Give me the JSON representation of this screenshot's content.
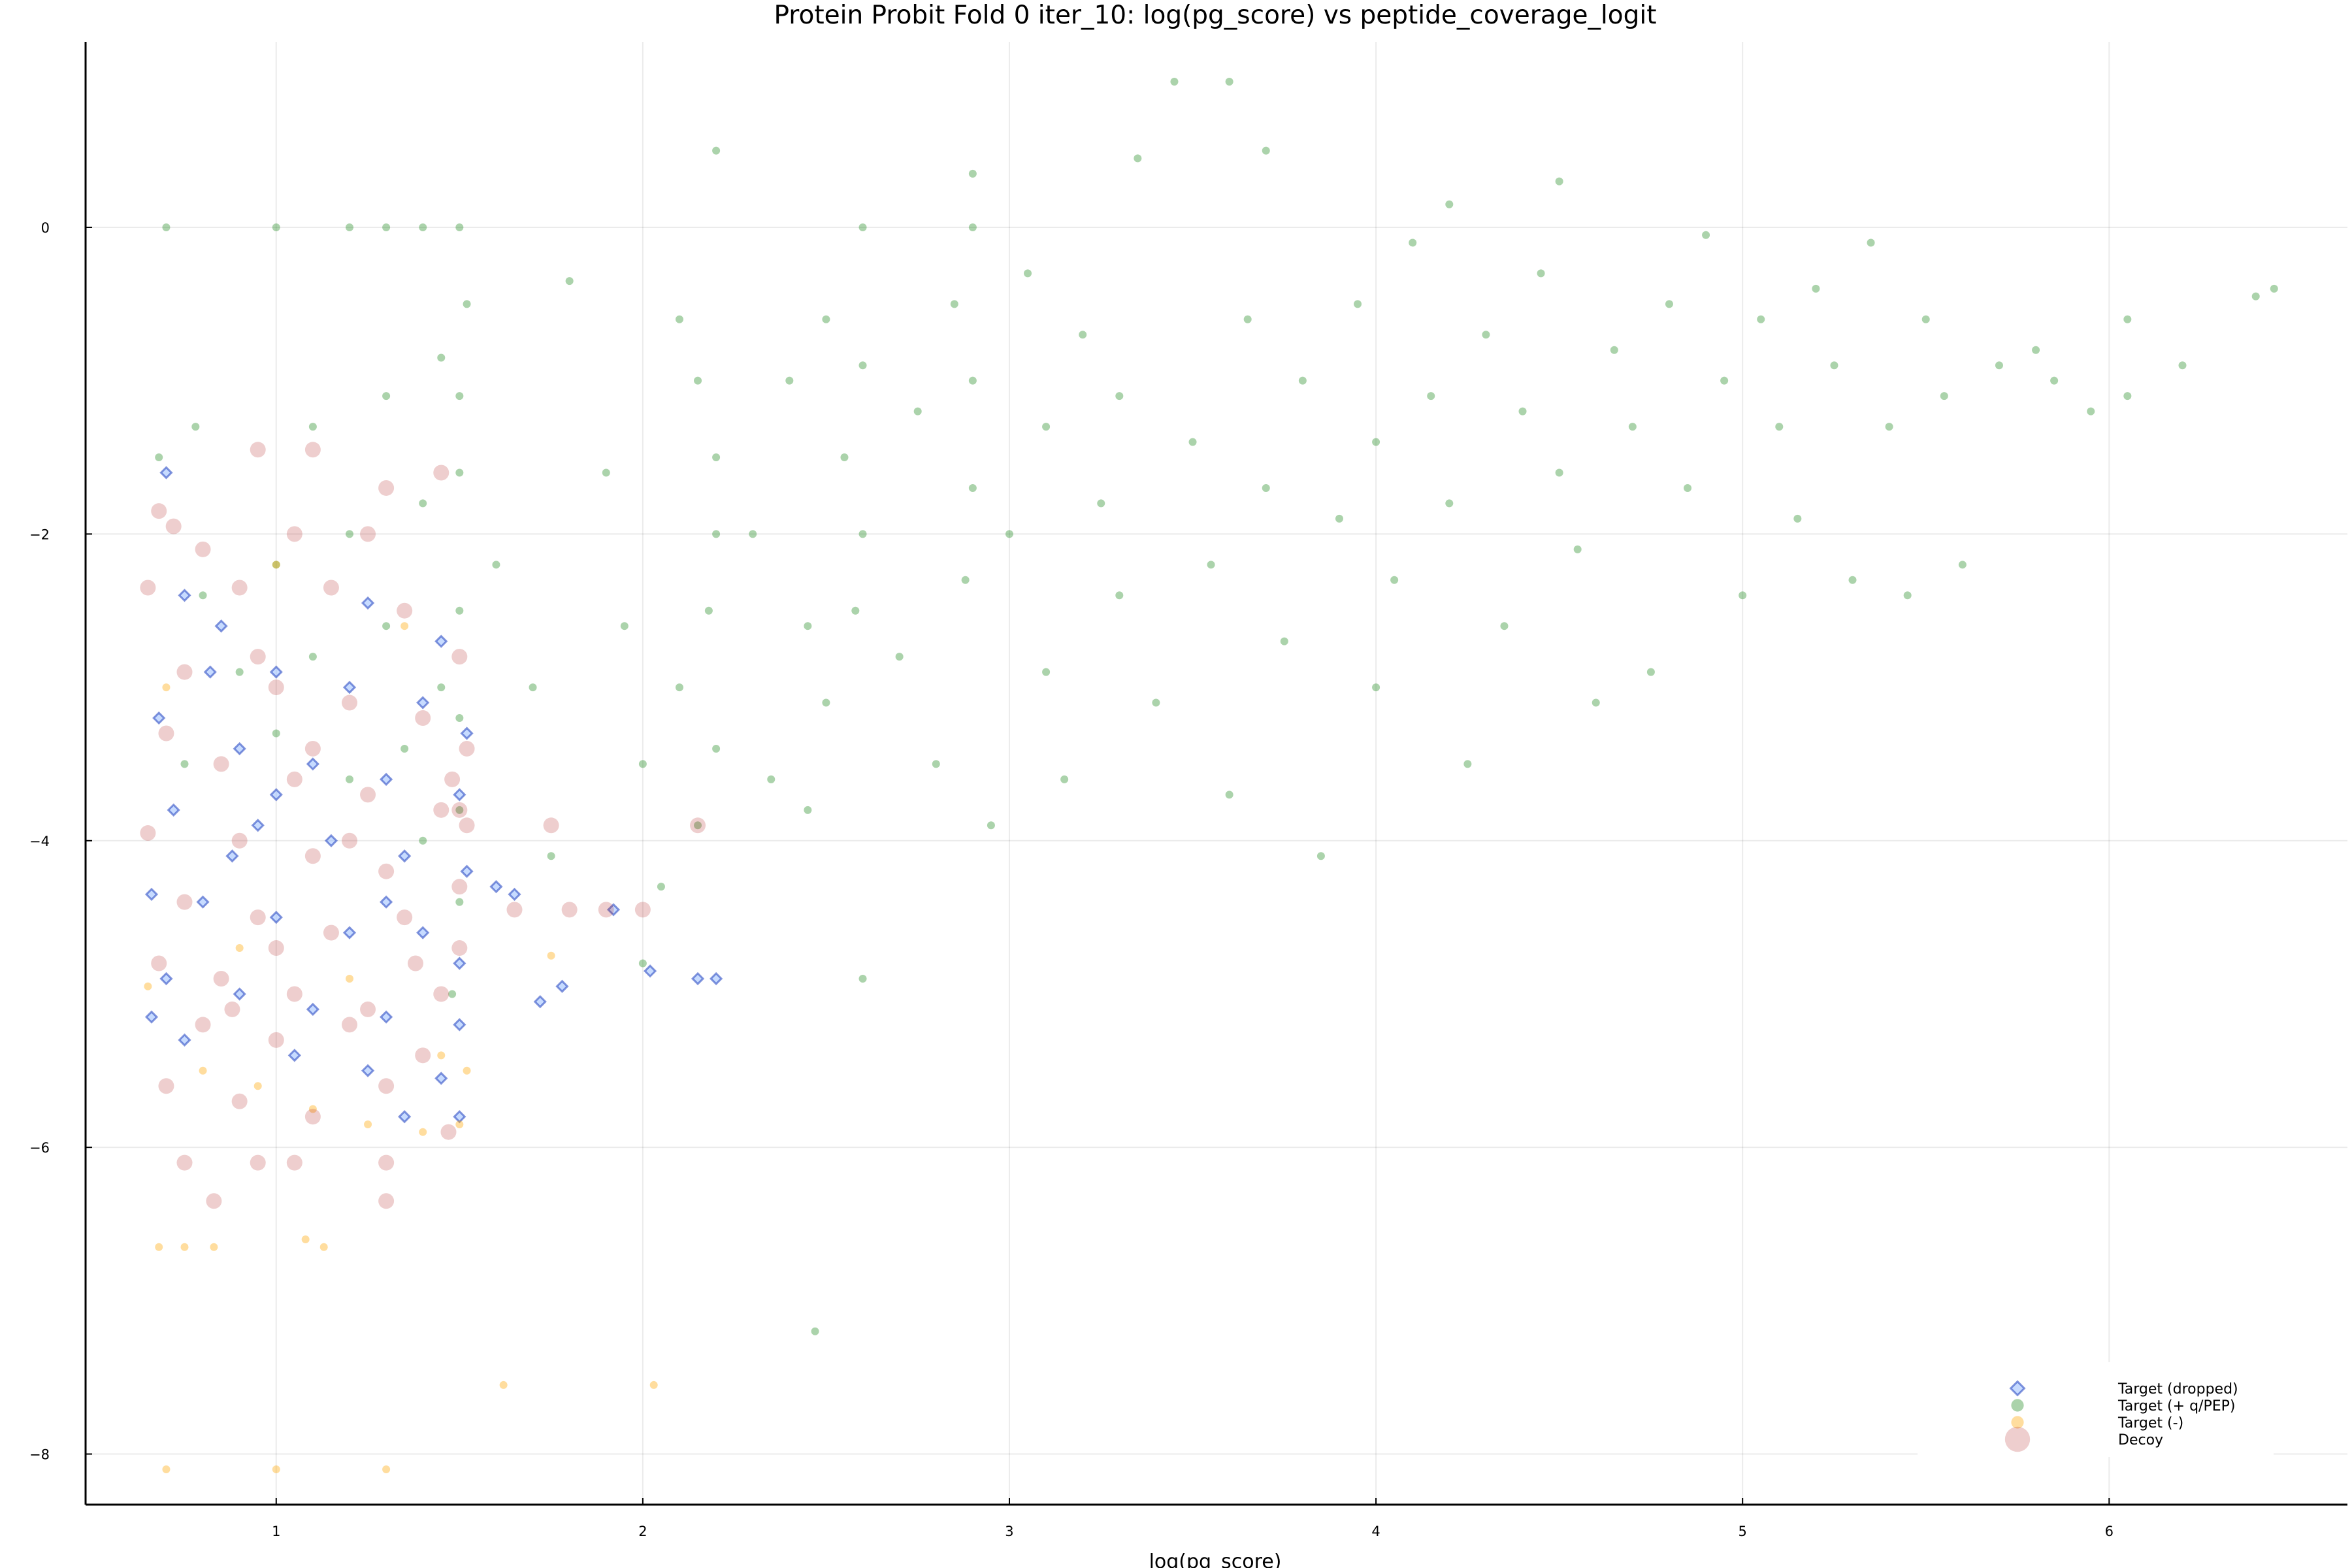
{
  "chart_data": {
    "type": "scatter",
    "title": "Protein Probit Fold 0 iter_10: log(pg_score) vs peptide_coverage_logit",
    "xlabel": "log(pg_score)",
    "ylabel": "",
    "xlim": [
      0.48,
      6.65
    ],
    "ylim": [
      -8.33,
      1.21
    ],
    "xticks": [
      1,
      2,
      3,
      4,
      5,
      6
    ],
    "yticks": [
      0,
      -2,
      -4,
      -6,
      -8
    ],
    "xtick_labels": [
      "1",
      "2",
      "3",
      "4",
      "5",
      "6"
    ],
    "ytick_labels": [
      "0",
      "−2",
      "−4",
      "−6",
      "−8"
    ],
    "grid": true,
    "legend_position": "bottom-right",
    "series": [
      {
        "name": "Target (dropped)",
        "marker": "diamond",
        "color": "#1f3fbf",
        "points": [
          [
            0.7,
            -1.6
          ],
          [
            0.75,
            -2.4
          ],
          [
            0.85,
            -2.6
          ],
          [
            1.0,
            -2.9
          ],
          [
            1.2,
            -3.0
          ],
          [
            1.4,
            -3.1
          ],
          [
            0.68,
            -3.2
          ],
          [
            0.9,
            -3.4
          ],
          [
            1.1,
            -3.5
          ],
          [
            1.3,
            -3.6
          ],
          [
            1.5,
            -3.7
          ],
          [
            0.72,
            -3.8
          ],
          [
            0.95,
            -3.9
          ],
          [
            1.15,
            -4.0
          ],
          [
            1.35,
            -4.1
          ],
          [
            1.52,
            -4.2
          ],
          [
            0.66,
            -4.35
          ],
          [
            0.8,
            -4.4
          ],
          [
            1.0,
            -4.5
          ],
          [
            1.2,
            -4.6
          ],
          [
            1.4,
            -4.6
          ],
          [
            1.5,
            -4.8
          ],
          [
            0.7,
            -4.9
          ],
          [
            0.9,
            -5.0
          ],
          [
            1.1,
            -5.1
          ],
          [
            1.3,
            -5.15
          ],
          [
            1.5,
            -5.2
          ],
          [
            0.75,
            -5.3
          ],
          [
            1.05,
            -5.4
          ],
          [
            1.25,
            -5.5
          ],
          [
            1.45,
            -5.55
          ],
          [
            1.35,
            -5.8
          ],
          [
            1.5,
            -5.8
          ],
          [
            0.66,
            -5.15
          ],
          [
            1.6,
            -4.3
          ],
          [
            1.65,
            -4.35
          ],
          [
            1.72,
            -5.05
          ],
          [
            1.78,
            -4.95
          ],
          [
            1.92,
            -4.45
          ],
          [
            2.02,
            -4.85
          ],
          [
            2.15,
            -4.9
          ],
          [
            2.2,
            -4.9
          ],
          [
            0.82,
            -2.9
          ],
          [
            1.25,
            -2.45
          ],
          [
            1.45,
            -2.7
          ],
          [
            1.52,
            -3.3
          ],
          [
            1.0,
            -3.7
          ],
          [
            1.3,
            -4.4
          ],
          [
            0.88,
            -4.1
          ]
        ]
      },
      {
        "name": "Target (+ q/PEP)",
        "marker": "circle",
        "color": "#228b22",
        "points": [
          [
            0.7,
            0
          ],
          [
            1.0,
            0
          ],
          [
            1.2,
            0
          ],
          [
            1.3,
            0
          ],
          [
            1.4,
            0
          ],
          [
            1.5,
            0
          ],
          [
            1.52,
            -0.5
          ],
          [
            1.45,
            -0.85
          ],
          [
            1.5,
            -1.1
          ],
          [
            1.3,
            -1.1
          ],
          [
            1.1,
            -1.3
          ],
          [
            0.78,
            -1.3
          ],
          [
            0.68,
            -1.5
          ],
          [
            1.5,
            -1.6
          ],
          [
            1.4,
            -1.8
          ],
          [
            1.2,
            -2.0
          ],
          [
            1.0,
            -2.2
          ],
          [
            0.8,
            -2.4
          ],
          [
            1.5,
            -2.5
          ],
          [
            1.3,
            -2.6
          ],
          [
            1.1,
            -2.8
          ],
          [
            0.9,
            -2.9
          ],
          [
            1.45,
            -3.0
          ],
          [
            1.5,
            -3.2
          ],
          [
            1.35,
            -3.4
          ],
          [
            1.2,
            -3.6
          ],
          [
            1.5,
            -3.8
          ],
          [
            1.4,
            -4.0
          ],
          [
            1.0,
            -3.3
          ],
          [
            0.75,
            -3.5
          ],
          [
            1.5,
            -4.4
          ],
          [
            1.48,
            -5.0
          ],
          [
            1.6,
            -2.2
          ],
          [
            1.7,
            -3.0
          ],
          [
            1.8,
            -0.35
          ],
          [
            1.75,
            -4.1
          ],
          [
            1.9,
            -1.6
          ],
          [
            1.95,
            -2.6
          ],
          [
            2.0,
            -3.5
          ],
          [
            2.05,
            -4.3
          ],
          [
            2.1,
            -0.6
          ],
          [
            2.15,
            -1.0
          ],
          [
            2.2,
            -1.5
          ],
          [
            2.2,
            -2.0
          ],
          [
            2.18,
            -2.5
          ],
          [
            2.1,
            -3.0
          ],
          [
            2.2,
            -3.4
          ],
          [
            2.15,
            -3.9
          ],
          [
            2.2,
            0.5
          ],
          [
            2.0,
            -4.8
          ],
          [
            2.3,
            -2.0
          ],
          [
            2.35,
            -3.6
          ],
          [
            2.4,
            -1.0
          ],
          [
            2.45,
            -2.6
          ],
          [
            2.5,
            -0.6
          ],
          [
            2.55,
            -1.5
          ],
          [
            2.6,
            -2.0
          ],
          [
            2.6,
            -0.9
          ],
          [
            2.58,
            -2.5
          ],
          [
            2.5,
            -3.1
          ],
          [
            2.45,
            -3.8
          ],
          [
            2.6,
            0
          ],
          [
            2.6,
            -4.9
          ],
          [
            2.47,
            -7.2
          ],
          [
            2.7,
            -2.8
          ],
          [
            2.75,
            -1.2
          ],
          [
            2.8,
            -3.5
          ],
          [
            2.85,
            -0.5
          ],
          [
            2.9,
            -1.0
          ],
          [
            2.9,
            -1.7
          ],
          [
            2.88,
            -2.3
          ],
          [
            2.9,
            0.35
          ],
          [
            2.9,
            0
          ],
          [
            2.95,
            -3.9
          ],
          [
            3.0,
            -2.0
          ],
          [
            3.05,
            -0.3
          ],
          [
            3.1,
            -1.3
          ],
          [
            3.1,
            -2.9
          ],
          [
            3.15,
            -3.6
          ],
          [
            3.2,
            -0.7
          ],
          [
            3.25,
            -1.8
          ],
          [
            3.3,
            -1.1
          ],
          [
            3.3,
            -2.4
          ],
          [
            3.35,
            0.45
          ],
          [
            3.4,
            -3.1
          ],
          [
            3.45,
            0.95
          ],
          [
            3.5,
            -1.4
          ],
          [
            3.55,
            -2.2
          ],
          [
            3.6,
            0.95
          ],
          [
            3.6,
            -3.7
          ],
          [
            3.65,
            -0.6
          ],
          [
            3.7,
            0.5
          ],
          [
            3.7,
            -1.7
          ],
          [
            3.75,
            -2.7
          ],
          [
            3.8,
            -1.0
          ],
          [
            3.85,
            -4.1
          ],
          [
            3.9,
            -1.9
          ],
          [
            3.95,
            -0.5
          ],
          [
            4.0,
            -1.4
          ],
          [
            4.0,
            -3.0
          ],
          [
            4.05,
            -2.3
          ],
          [
            4.1,
            -0.1
          ],
          [
            4.15,
            -1.1
          ],
          [
            4.2,
            0.15
          ],
          [
            4.2,
            -1.8
          ],
          [
            4.25,
            -3.5
          ],
          [
            4.3,
            -0.7
          ],
          [
            4.35,
            -2.6
          ],
          [
            4.4,
            -1.2
          ],
          [
            4.45,
            -0.3
          ],
          [
            4.5,
            0.3
          ],
          [
            4.5,
            -1.6
          ],
          [
            4.55,
            -2.1
          ],
          [
            4.6,
            -3.1
          ],
          [
            4.65,
            -0.8
          ],
          [
            4.7,
            -1.3
          ],
          [
            4.75,
            -2.9
          ],
          [
            4.8,
            -0.5
          ],
          [
            4.85,
            -1.7
          ],
          [
            4.9,
            -0.05
          ],
          [
            4.95,
            -1.0
          ],
          [
            5.0,
            -2.4
          ],
          [
            5.05,
            -0.6
          ],
          [
            5.1,
            -1.3
          ],
          [
            5.15,
            -1.9
          ],
          [
            5.2,
            -0.4
          ],
          [
            5.25,
            -0.9
          ],
          [
            5.3,
            -2.3
          ],
          [
            5.35,
            -0.1
          ],
          [
            5.4,
            -1.3
          ],
          [
            5.45,
            -2.4
          ],
          [
            5.5,
            -0.6
          ],
          [
            5.55,
            -1.1
          ],
          [
            5.6,
            -2.2
          ],
          [
            5.7,
            -0.9
          ],
          [
            5.8,
            -0.8
          ],
          [
            5.85,
            -1.0
          ],
          [
            5.95,
            -1.2
          ],
          [
            6.05,
            -0.6
          ],
          [
            6.05,
            -1.1
          ],
          [
            6.2,
            -0.9
          ],
          [
            6.4,
            -0.45
          ],
          [
            6.45,
            -0.4
          ]
        ]
      },
      {
        "name": "Target (-)",
        "marker": "circle",
        "color": "#ffa500",
        "points": [
          [
            0.68,
            -6.65
          ],
          [
            0.75,
            -6.65
          ],
          [
            0.83,
            -6.65
          ],
          [
            1.08,
            -6.6
          ],
          [
            1.13,
            -6.65
          ],
          [
            0.7,
            -8.1
          ],
          [
            1.0,
            -8.1
          ],
          [
            1.3,
            -8.1
          ],
          [
            1.62,
            -7.55
          ],
          [
            2.03,
            -7.55
          ],
          [
            0.65,
            -4.95
          ],
          [
            0.8,
            -5.5
          ],
          [
            0.95,
            -5.6
          ],
          [
            1.1,
            -5.75
          ],
          [
            1.25,
            -5.85
          ],
          [
            1.4,
            -5.9
          ],
          [
            1.5,
            -5.85
          ],
          [
            1.52,
            -5.5
          ],
          [
            0.9,
            -4.7
          ],
          [
            1.2,
            -4.9
          ],
          [
            1.45,
            -5.4
          ],
          [
            1.75,
            -4.75
          ],
          [
            0.7,
            -3.0
          ],
          [
            1.35,
            -2.6
          ],
          [
            1.0,
            -2.2
          ]
        ]
      },
      {
        "name": "Decoy",
        "marker": "circle",
        "color": "#b22222",
        "points": [
          [
            0.68,
            -1.85
          ],
          [
            0.72,
            -1.95
          ],
          [
            0.95,
            -1.45
          ],
          [
            1.05,
            -2.0
          ],
          [
            1.1,
            -1.45
          ],
          [
            1.25,
            -2.0
          ],
          [
            1.3,
            -1.7
          ],
          [
            1.45,
            -1.6
          ],
          [
            0.8,
            -2.1
          ],
          [
            0.65,
            -2.35
          ],
          [
            0.9,
            -2.35
          ],
          [
            1.15,
            -2.35
          ],
          [
            1.35,
            -2.5
          ],
          [
            1.5,
            -2.8
          ],
          [
            0.75,
            -2.9
          ],
          [
            1.0,
            -3.0
          ],
          [
            1.2,
            -3.1
          ],
          [
            1.4,
            -3.2
          ],
          [
            1.52,
            -3.4
          ],
          [
            0.7,
            -3.3
          ],
          [
            0.85,
            -3.5
          ],
          [
            1.05,
            -3.6
          ],
          [
            1.25,
            -3.7
          ],
          [
            1.45,
            -3.8
          ],
          [
            1.52,
            -3.9
          ],
          [
            0.65,
            -3.95
          ],
          [
            0.9,
            -4.0
          ],
          [
            1.1,
            -4.1
          ],
          [
            1.3,
            -4.2
          ],
          [
            1.5,
            -4.3
          ],
          [
            0.75,
            -4.4
          ],
          [
            0.95,
            -4.5
          ],
          [
            1.15,
            -4.6
          ],
          [
            1.35,
            -4.5
          ],
          [
            1.5,
            -4.7
          ],
          [
            0.68,
            -4.8
          ],
          [
            0.85,
            -4.9
          ],
          [
            1.05,
            -5.0
          ],
          [
            1.25,
            -5.1
          ],
          [
            1.45,
            -5.0
          ],
          [
            0.8,
            -5.2
          ],
          [
            1.0,
            -5.3
          ],
          [
            1.2,
            -5.2
          ],
          [
            1.4,
            -5.4
          ],
          [
            0.7,
            -5.6
          ],
          [
            0.9,
            -5.7
          ],
          [
            1.1,
            -5.8
          ],
          [
            1.3,
            -5.6
          ],
          [
            1.47,
            -5.9
          ],
          [
            0.75,
            -6.1
          ],
          [
            0.95,
            -6.1
          ],
          [
            1.05,
            -6.1
          ],
          [
            1.3,
            -6.1
          ],
          [
            0.83,
            -6.35
          ],
          [
            1.3,
            -6.35
          ],
          [
            1.65,
            -4.45
          ],
          [
            1.8,
            -4.45
          ],
          [
            1.9,
            -4.45
          ],
          [
            2.0,
            -4.45
          ],
          [
            1.75,
            -3.9
          ],
          [
            2.15,
            -3.9
          ],
          [
            1.48,
            -3.6
          ],
          [
            1.5,
            -3.8
          ],
          [
            1.1,
            -3.4
          ],
          [
            0.95,
            -2.8
          ],
          [
            1.38,
            -4.8
          ],
          [
            1.2,
            -4.0
          ],
          [
            1.0,
            -4.7
          ],
          [
            0.88,
            -5.1
          ]
        ]
      }
    ]
  }
}
